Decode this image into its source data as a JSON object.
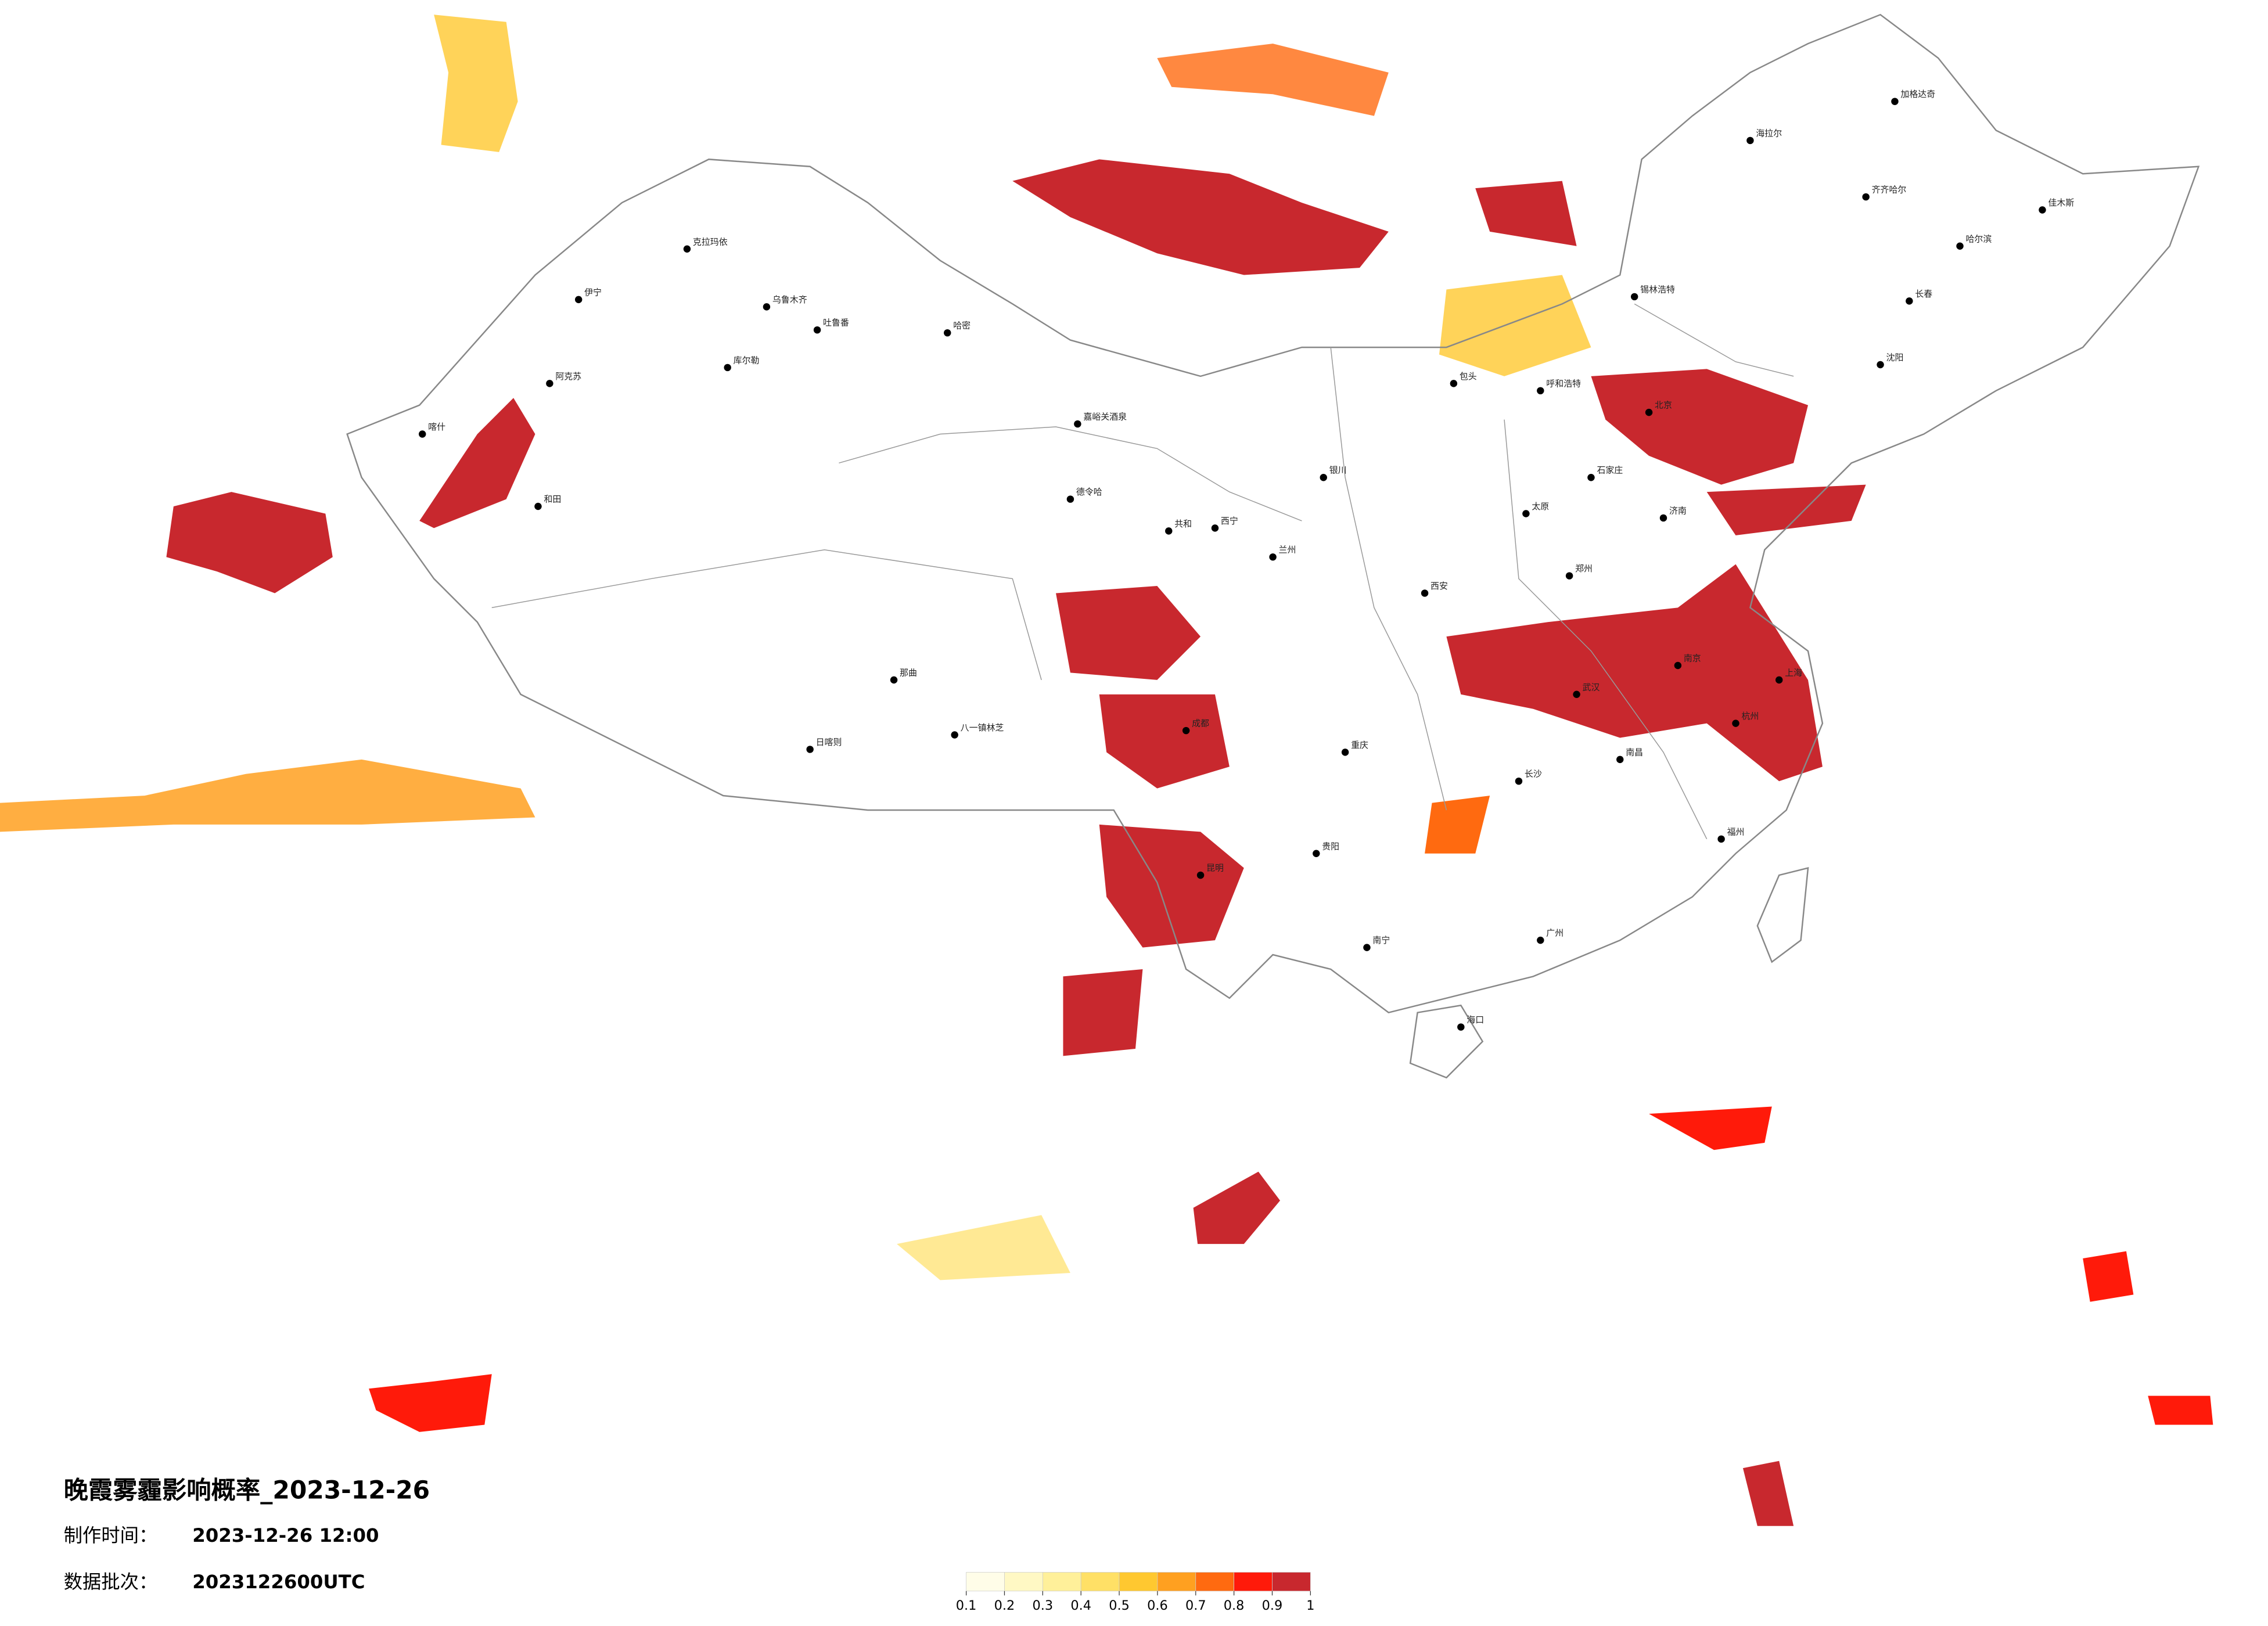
{
  "header": {
    "title": "晚霞雾霾影响概率_2023-12-26",
    "made_label": "制作时间：",
    "made_value": "2023-12-26 12:00",
    "batch_label": "数据批次：",
    "batch_value": "2023122600UTC"
  },
  "legend": {
    "ticks": [
      0.1,
      0.2,
      0.3,
      0.4,
      0.5,
      0.6,
      0.7,
      0.8,
      0.9,
      1
    ],
    "colors": [
      "#fffde8",
      "#fff8c4",
      "#fff09a",
      "#ffe066",
      "#ffc830",
      "#ffa020",
      "#ff6a10",
      "#ff1a0a",
      "#c8282e"
    ]
  },
  "cities": [
    "克拉玛依",
    "伊宁",
    "乌鲁木齐",
    "吐鲁番",
    "哈密",
    "库尔勒",
    "阿克苏",
    "喀什",
    "和田",
    "嘉峪关酒泉",
    "德令哈",
    "共和",
    "日喀则",
    "那曲",
    "八一镇林芝",
    "海拉尔",
    "加格达奇",
    "齐齐哈尔",
    "哈尔滨",
    "佳木斯",
    "长春",
    "沈阳",
    "北京",
    "石家庄",
    "太原",
    "济南",
    "郑州",
    "西安",
    "兰州",
    "西宁",
    "成都",
    "重庆",
    "贵阳",
    "昆明",
    "南宁",
    "广州",
    "长沙",
    "武汉",
    "南京",
    "上海",
    "杭州",
    "福州",
    "南昌",
    "海口",
    "锡林浩特",
    "呼和浩特",
    "包头",
    "银川"
  ]
}
